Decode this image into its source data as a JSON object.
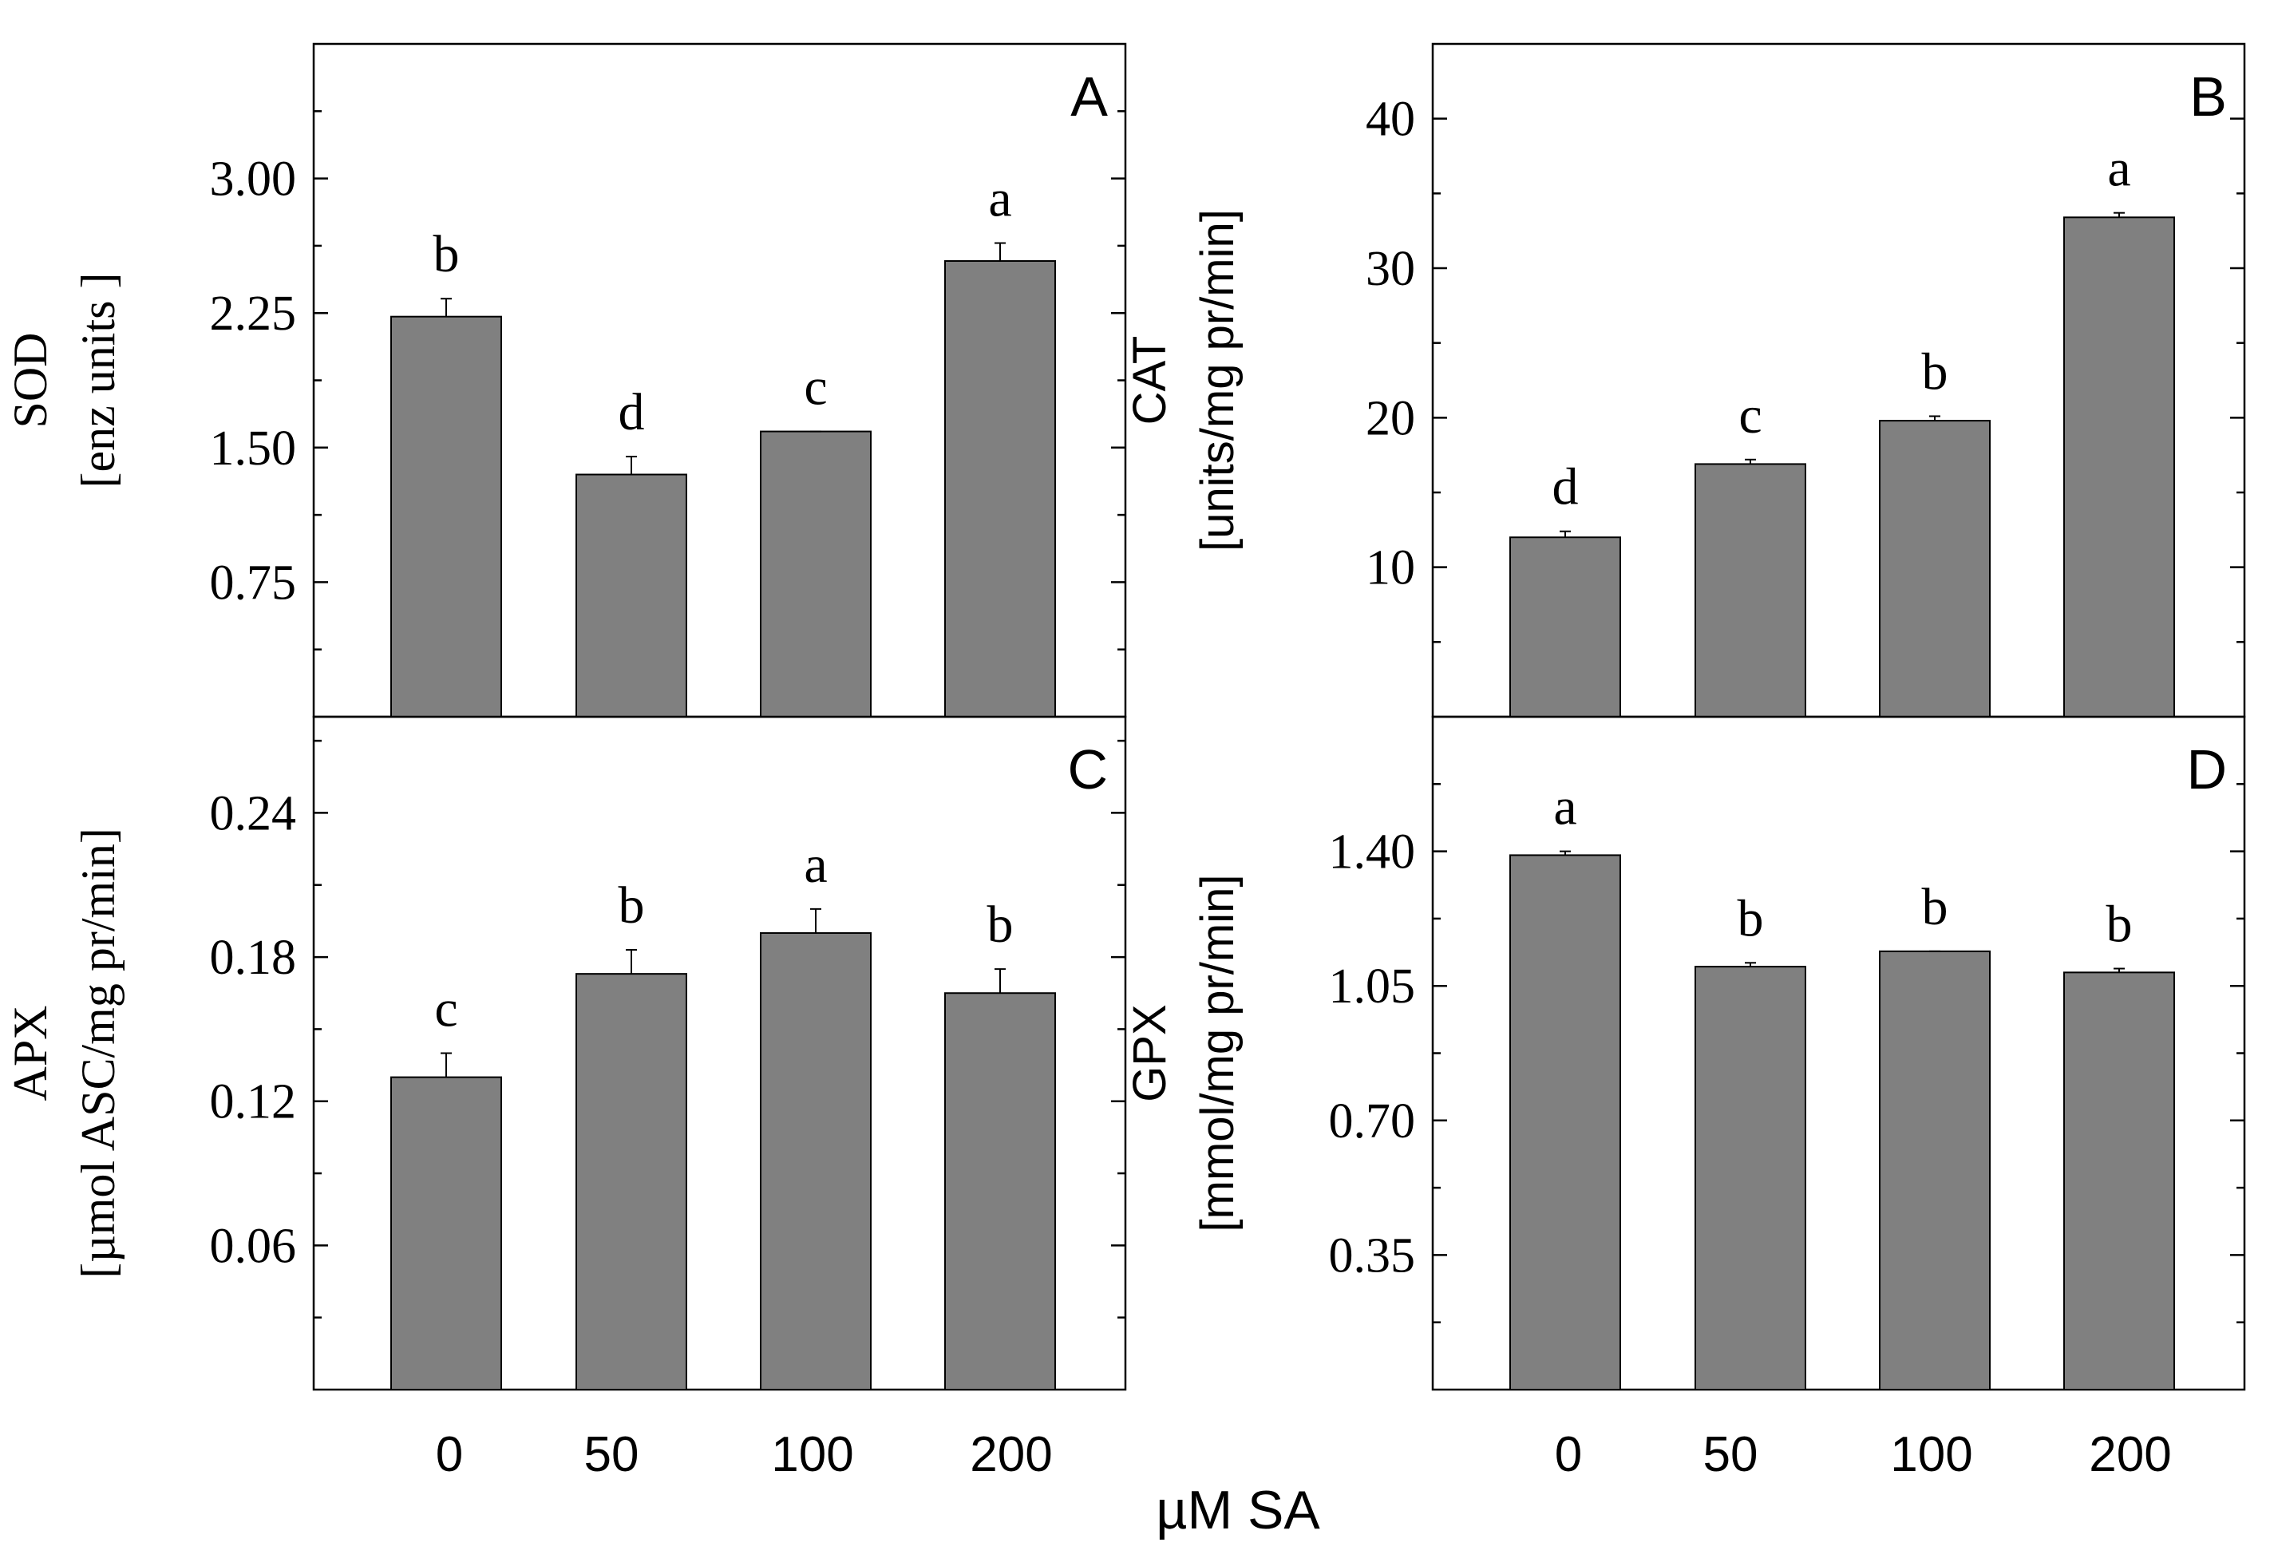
{
  "x_axis_title": "µM SA",
  "bar_color": "#808080",
  "chart_data": [
    {
      "type": "bar",
      "panel": "A",
      "ylabel_line1": "SOD",
      "ylabel_line2": "[enz units ]",
      "categories": [
        "0",
        "50",
        "100",
        "200"
      ],
      "values": [
        2.23,
        1.35,
        1.59,
        2.54
      ],
      "errors": [
        0.1,
        0.1,
        0.0,
        0.1
      ],
      "letters": [
        "b",
        "d",
        "c",
        "a"
      ],
      "ylim": [
        0,
        3.75
      ],
      "yticks": [
        0.75,
        1.5,
        2.25,
        3.0
      ],
      "yticklabels": [
        "0.75",
        "1.50",
        "2.25",
        "3.00"
      ],
      "minor_ticks": [
        0.375,
        1.125,
        1.875,
        2.625,
        3.375
      ]
    },
    {
      "type": "bar",
      "panel": "B",
      "ylabel_line1": "CAT",
      "ylabel_line2": "[units/mg pr/min]",
      "categories": [
        "0",
        "50",
        "100",
        "200"
      ],
      "values": [
        12.0,
        16.9,
        19.8,
        33.4
      ],
      "errors": [
        0.4,
        0.3,
        0.3,
        0.3
      ],
      "letters": [
        "d",
        "c",
        "b",
        "a"
      ],
      "ylim": [
        0,
        45
      ],
      "yticks": [
        10,
        20,
        30,
        40
      ],
      "yticklabels": [
        "10",
        "20",
        "30",
        "40"
      ],
      "minor_ticks": [
        5,
        15,
        25,
        35
      ]
    },
    {
      "type": "bar",
      "panel": "C",
      "ylabel_line1": "APX",
      "ylabel_line2": "[µmol ASC/mg pr/min]",
      "categories": [
        "0",
        "50",
        "100",
        "200"
      ],
      "values": [
        0.13,
        0.173,
        0.19,
        0.165
      ],
      "errors": [
        0.01,
        0.01,
        0.01,
        0.01
      ],
      "letters": [
        "c",
        "b",
        "a",
        "b"
      ],
      "ylim": [
        0,
        0.28
      ],
      "yticks": [
        0.06,
        0.12,
        0.18,
        0.24
      ],
      "yticklabels": [
        "0.06",
        "0.12",
        "0.18",
        "0.24"
      ],
      "minor_ticks": [
        0.03,
        0.09,
        0.15,
        0.21,
        0.27
      ]
    },
    {
      "type": "bar",
      "panel": "D",
      "ylabel_line1": "GPX",
      "ylabel_line2": "[mmol/mg pr/min]",
      "categories": [
        "0",
        "50",
        "100",
        "200"
      ],
      "values": [
        1.39,
        1.1,
        1.14,
        1.085
      ],
      "errors": [
        0.01,
        0.01,
        0.0,
        0.01
      ],
      "letters": [
        "a",
        "b",
        "b",
        "b"
      ],
      "ylim": [
        0,
        1.75
      ],
      "yticks": [
        0.35,
        0.7,
        1.05,
        1.4
      ],
      "yticklabels": [
        "0.35",
        "0.70",
        "1.05",
        "1.40"
      ],
      "minor_ticks": [
        0.175,
        0.525,
        0.875,
        1.225,
        1.575
      ]
    }
  ]
}
